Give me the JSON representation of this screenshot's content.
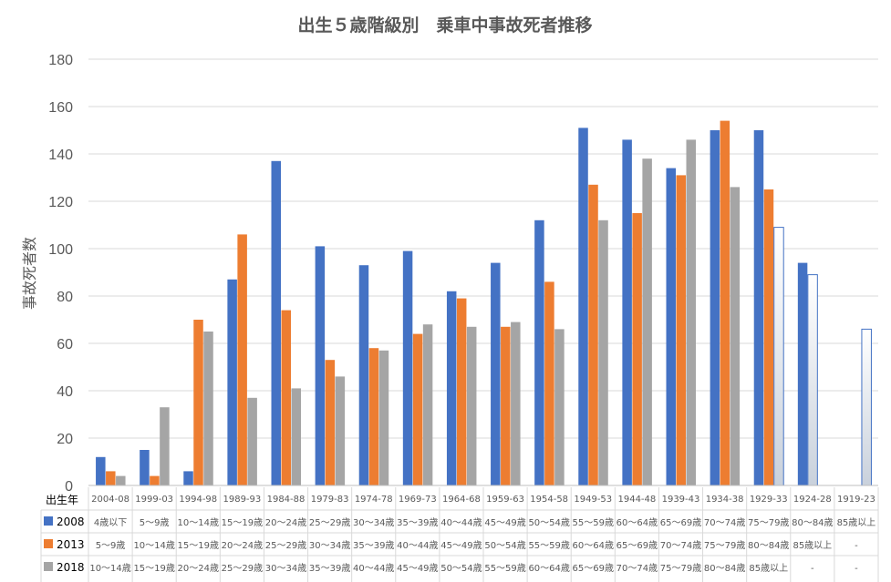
{
  "chart_data": {
    "type": "bar",
    "title": "出生５歳階級別　乗車中事故死者推移",
    "ylabel": "事故死者数",
    "ylim": [
      0,
      180
    ],
    "yticks": [
      0,
      20,
      40,
      60,
      80,
      100,
      120,
      140,
      160,
      180
    ],
    "grid": true,
    "categories": [
      "2004-08",
      "1999-03",
      "1994-98",
      "1989-93",
      "1984-88",
      "1979-83",
      "1974-78",
      "1969-73",
      "1964-68",
      "1959-63",
      "1954-58",
      "1949-53",
      "1944-48",
      "1939-43",
      "1934-38",
      "1929-33",
      "1924-28",
      "1919-23"
    ],
    "table_header": "出生年",
    "series": [
      {
        "name": "2008",
        "color": "#4472c4",
        "values": [
          12,
          15,
          6,
          87,
          137,
          101,
          93,
          99,
          82,
          94,
          112,
          151,
          146,
          134,
          150,
          150,
          94,
          null
        ],
        "hollow": [
          false,
          false,
          false,
          false,
          false,
          false,
          false,
          false,
          false,
          false,
          false,
          false,
          false,
          false,
          false,
          false,
          false,
          false
        ],
        "age_labels": [
          "4歳以下",
          "5～9歳",
          "10～14歳",
          "15～19歳",
          "20～24歳",
          "25～29歳",
          "30～34歳",
          "35～39歳",
          "40～44歳",
          "45～49歳",
          "50～54歳",
          "55～59歳",
          "60～64歳",
          "65～69歳",
          "70～74歳",
          "75～79歳",
          "80～84歳",
          "85歳以上"
        ]
      },
      {
        "name": "2013",
        "color": "#ed7d31",
        "values": [
          6,
          4,
          70,
          106,
          74,
          53,
          58,
          64,
          79,
          67,
          86,
          127,
          115,
          131,
          154,
          125,
          89,
          null
        ],
        "hollow": [
          false,
          false,
          false,
          false,
          false,
          false,
          false,
          false,
          false,
          false,
          false,
          false,
          false,
          false,
          false,
          false,
          true,
          false
        ],
        "age_labels": [
          "5～9歳",
          "10～14歳",
          "15～19歳",
          "20～24歳",
          "25～29歳",
          "30～34歳",
          "35～39歳",
          "40～44歳",
          "45～49歳",
          "50～54歳",
          "55～59歳",
          "60～64歳",
          "65～69歳",
          "70～74歳",
          "75～79歳",
          "80～84歳",
          "85歳以上",
          "-"
        ]
      },
      {
        "name": "2018",
        "color": "#a5a5a5",
        "values": [
          4,
          33,
          65,
          37,
          41,
          46,
          57,
          68,
          67,
          69,
          66,
          112,
          138,
          146,
          126,
          109,
          null,
          66
        ],
        "hollow": [
          false,
          false,
          false,
          false,
          false,
          false,
          false,
          false,
          false,
          false,
          false,
          false,
          false,
          false,
          false,
          true,
          false,
          true
        ],
        "age_labels": [
          "10～14歳",
          "15～19歳",
          "20～24歳",
          "25～29歳",
          "30～34歳",
          "35～39歳",
          "40～44歳",
          "45～49歳",
          "50～54歳",
          "55～59歳",
          "60～64歳",
          "65～69歳",
          "70～74歳",
          "75～79歳",
          "80～84歳",
          "85歳以上",
          "-",
          "-"
        ]
      }
    ],
    "hollow_fill_top": "#ffffff",
    "hollow_fill_bottom": "#c9d1dc",
    "hollow_stroke": "#4472c4"
  }
}
